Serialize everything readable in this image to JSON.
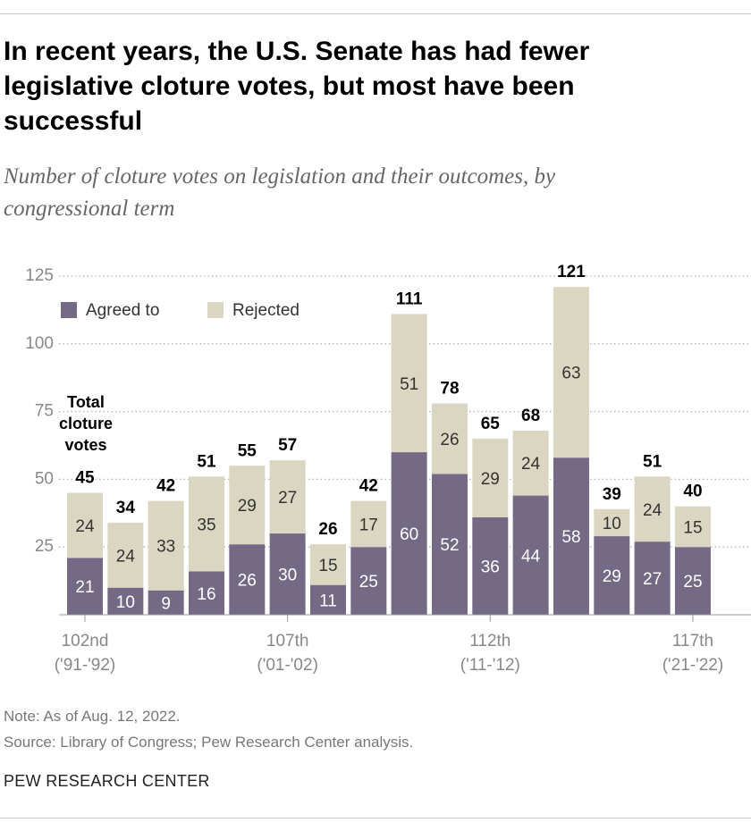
{
  "header": {
    "title": "In recent years, the U.S. Senate has had fewer legislative cloture votes, but most have been successful",
    "subtitle": "Number of cloture votes on legislation and their outcomes, by congressional term"
  },
  "chart_data": {
    "type": "stacked_bar",
    "categories": [
      "102nd",
      null,
      null,
      null,
      null,
      "107th",
      null,
      null,
      null,
      null,
      "112th",
      null,
      null,
      null,
      null,
      "117th"
    ],
    "category_years": [
      "('91-'92)",
      null,
      null,
      null,
      null,
      "('01-'02)",
      null,
      null,
      null,
      null,
      "('11-'12)",
      null,
      null,
      null,
      null,
      "('21-'22)"
    ],
    "series": [
      {
        "name": "Agreed to",
        "color": "#756a85",
        "label_color": "#ffffff",
        "values": [
          21,
          10,
          9,
          16,
          26,
          30,
          11,
          25,
          60,
          52,
          36,
          44,
          58,
          29,
          27,
          25
        ]
      },
      {
        "name": "Rejected",
        "color": "#dad6c2",
        "label_color": "#333333",
        "values": [
          24,
          24,
          33,
          35,
          29,
          27,
          15,
          17,
          51,
          26,
          29,
          24,
          63,
          10,
          24,
          15
        ]
      }
    ],
    "totals": [
      45,
      34,
      42,
      51,
      55,
      57,
      26,
      42,
      111,
      78,
      65,
      68,
      121,
      39,
      51,
      40
    ],
    "annotation": "Total cloture votes",
    "ylim": [
      0,
      125
    ],
    "yticks": [
      25,
      50,
      75,
      100,
      125
    ],
    "grid": true
  },
  "footer": {
    "note": "Note: As of Aug. 12, 2022.",
    "source": "Source: Library of Congress; Pew Research Center analysis.",
    "brand": "PEW RESEARCH CENTER"
  }
}
